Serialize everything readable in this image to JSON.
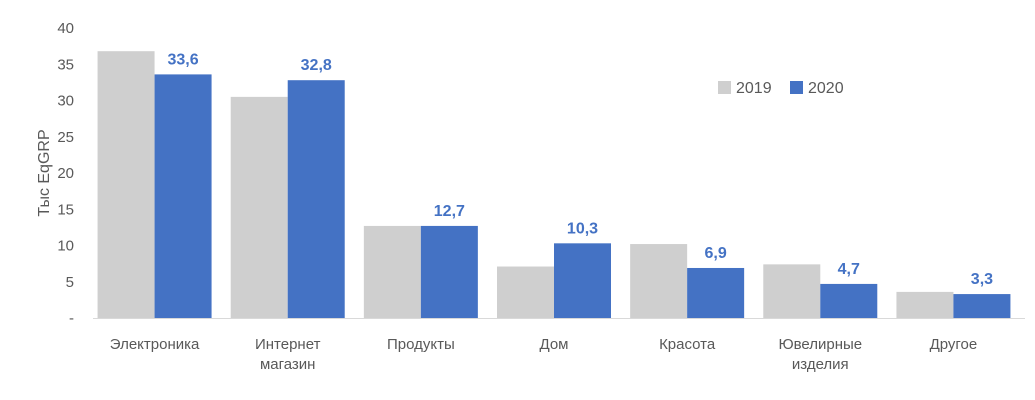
{
  "chart_data": {
    "type": "bar",
    "ylabel": "Тыс EqGRP",
    "xlabel": "",
    "ylim": [
      0,
      40
    ],
    "yticks": [
      "-",
      "5",
      "10",
      "15",
      "20",
      "25",
      "30",
      "35",
      "40"
    ],
    "categories": [
      [
        "Электроника"
      ],
      [
        "Интернет",
        "магазин"
      ],
      [
        "Продукты"
      ],
      [
        "Дом"
      ],
      [
        "Красота"
      ],
      [
        "Ювелирные",
        "изделия"
      ],
      [
        "Другое"
      ]
    ],
    "series": [
      {
        "name": "2019",
        "color": "#cfcfcf",
        "values": [
          36.8,
          30.5,
          12.7,
          7.1,
          10.2,
          7.4,
          3.6
        ]
      },
      {
        "name": "2020",
        "color": "#4472c4",
        "values": [
          33.6,
          32.8,
          12.7,
          10.3,
          6.9,
          4.7,
          3.3
        ]
      }
    ],
    "data_labels": [
      "33,6",
      "32,8",
      "12,7",
      "10,3",
      "6,9",
      "4,7",
      "3,3"
    ],
    "legend_position": "top-right",
    "grid": false
  }
}
